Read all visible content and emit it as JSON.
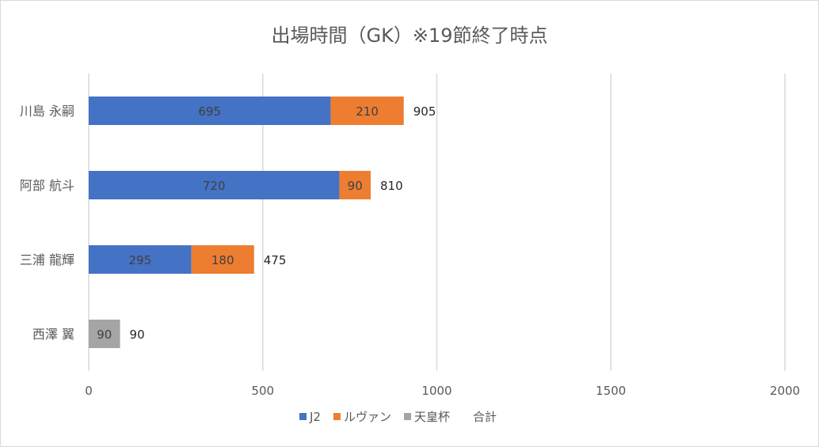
{
  "chart_data": {
    "type": "bar",
    "orientation": "horizontal",
    "stacked": true,
    "title": "出場時間（GK）※19節終了時点",
    "categories": [
      "川島 永嗣",
      "阿部 航斗",
      "三浦 龍輝",
      "西澤 翼"
    ],
    "series": [
      {
        "name": "J2",
        "color": "#4472c4",
        "values": [
          695,
          720,
          295,
          null
        ]
      },
      {
        "name": "ルヴァン",
        "color": "#ed7d31",
        "values": [
          210,
          90,
          180,
          null
        ]
      },
      {
        "name": "天皇杯",
        "color": "#a5a5a5",
        "values": [
          null,
          null,
          null,
          90
        ]
      }
    ],
    "totals": {
      "name": "合計",
      "values": [
        905,
        810,
        475,
        90
      ]
    },
    "xlim": [
      0,
      2000
    ],
    "xticks": [
      0,
      500,
      1000,
      1500,
      2000
    ],
    "grid": "vertical",
    "legend": "bottom"
  }
}
